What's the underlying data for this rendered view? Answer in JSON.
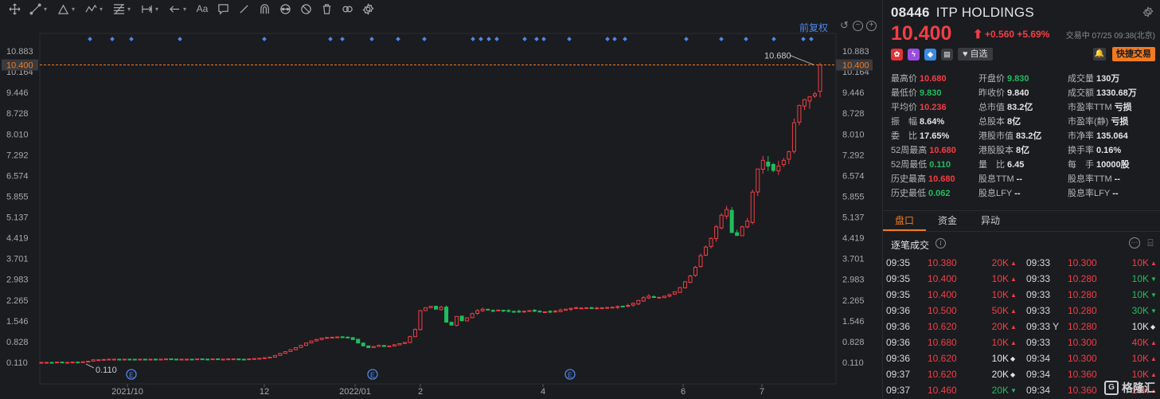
{
  "toolbar": {
    "icons": [
      "crosshair-icon",
      "trendline-icon",
      "triangle-icon",
      "wave-icon",
      "fib-icon",
      "range-icon",
      "arrow-icon",
      "text-icon",
      "note-icon",
      "pen-icon",
      "magnet-icon",
      "eye-icon",
      "hide-icon",
      "trash-icon",
      "link-icon",
      "gear-icon"
    ],
    "text_tool": "Aa"
  },
  "chart": {
    "adjust_label": "前复权",
    "current_price_line": "10.400",
    "high_marker": "10.680",
    "low_marker": "0.110",
    "event_marker": "E",
    "colors": {
      "up": "#f23e44",
      "down": "#1fbd5d",
      "dots": "#4e86e6",
      "price_line": "#f27a20"
    }
  },
  "chart_data": {
    "type": "candlestick",
    "y_ticks": [
      "10.883",
      "10.164",
      "9.446",
      "8.728",
      "8.010",
      "7.292",
      "6.574",
      "5.855",
      "5.137",
      "4.419",
      "3.701",
      "2.983",
      "2.265",
      "1.546",
      "0.828",
      "0.110"
    ],
    "ylim": [
      0.11,
      10.883
    ],
    "x_ticks": [
      "2021/10",
      "12",
      "2022/01",
      "2",
      "4",
      "6",
      "7"
    ],
    "events_at": [
      "2021/10",
      "2022/01",
      "4"
    ],
    "close_path": [
      0.11,
      0.11,
      0.11,
      0.12,
      0.11,
      0.11,
      0.12,
      0.11,
      0.13,
      0.15,
      0.2,
      0.2,
      0.21,
      0.22,
      0.22,
      0.21,
      0.22,
      0.22,
      0.21,
      0.22,
      0.22,
      0.22,
      0.21,
      0.22,
      0.23,
      0.22,
      0.21,
      0.22,
      0.22,
      0.22,
      0.23,
      0.22,
      0.22,
      0.23,
      0.22,
      0.22,
      0.23,
      0.23,
      0.22,
      0.22,
      0.23,
      0.24,
      0.25,
      0.27,
      0.29,
      0.35,
      0.42,
      0.48,
      0.55,
      0.62,
      0.7,
      0.78,
      0.85,
      0.9,
      0.95,
      0.97,
      0.98,
      0.99,
      0.98,
      0.96,
      0.9,
      0.78,
      0.68,
      0.62,
      0.66,
      0.7,
      0.66,
      0.68,
      0.72,
      0.76,
      0.8,
      1.0,
      1.25,
      1.9,
      2.0,
      2.05,
      1.95,
      2.02,
      1.5,
      1.4,
      1.7,
      1.55,
      1.65,
      1.8,
      1.9,
      1.95,
      1.92,
      1.88,
      1.92,
      1.9,
      1.88,
      1.87,
      1.86,
      1.88,
      1.9,
      1.88,
      1.86,
      1.86,
      1.87,
      1.88,
      1.92,
      1.95,
      1.98,
      2.0,
      1.99,
      2.0,
      1.98,
      1.99,
      2.0,
      2.01,
      2.02,
      2.04,
      2.05,
      2.08,
      2.15,
      2.25,
      2.35,
      2.4,
      2.38,
      2.36,
      2.4,
      2.45,
      2.55,
      2.7,
      2.9,
      3.1,
      3.4,
      3.8,
      4.1,
      4.4,
      4.8,
      5.2,
      5.4,
      4.6,
      4.5,
      4.8,
      5.0,
      6.0,
      6.8,
      7.1,
      6.9,
      6.75,
      6.9,
      7.1,
      7.4,
      8.4,
      9.0,
      9.2,
      9.3,
      9.4,
      10.4
    ],
    "dot_markers": 30
  },
  "quote": {
    "code": "08446",
    "name": "ITP HOLDINGS",
    "price": "10.400",
    "arrow": "⬆",
    "change": "+0.560 +5.69%",
    "status": "交易中 07/25 09:38(北京)",
    "watch_label": "自选",
    "quick_trade": "快捷交易",
    "stats": [
      {
        "label": "最高价",
        "value": "10.680",
        "color": "red"
      },
      {
        "label": "开盘价",
        "value": "9.830",
        "color": "green"
      },
      {
        "label": "成交量",
        "value": "130万",
        "color": ""
      },
      {
        "label": "最低价",
        "value": "9.830",
        "color": "green"
      },
      {
        "label": "昨收价",
        "value": "9.840",
        "color": ""
      },
      {
        "label": "成交额",
        "value": "1330.68万",
        "color": ""
      },
      {
        "label": "平均价",
        "value": "10.236",
        "color": "red"
      },
      {
        "label": "总市值",
        "value": "83.2亿",
        "color": ""
      },
      {
        "label": "市盈率TTM",
        "value": "亏损",
        "color": ""
      },
      {
        "label": "振　幅",
        "value": "8.64%",
        "color": ""
      },
      {
        "label": "总股本",
        "value": "8亿",
        "color": ""
      },
      {
        "label": "市盈率(静)",
        "value": "亏损",
        "color": ""
      },
      {
        "label": "委　比",
        "value": "17.65%",
        "color": ""
      },
      {
        "label": "港股市值",
        "value": "83.2亿",
        "color": ""
      },
      {
        "label": "市净率",
        "value": "135.064",
        "color": ""
      },
      {
        "label": "52周最高",
        "value": "10.680",
        "color": "red"
      },
      {
        "label": "港股股本",
        "value": "8亿",
        "color": ""
      },
      {
        "label": "换手率",
        "value": "0.16%",
        "color": ""
      },
      {
        "label": "52周最低",
        "value": "0.110",
        "color": "green"
      },
      {
        "label": "量　比",
        "value": "6.45",
        "color": ""
      },
      {
        "label": "每　手",
        "value": "10000股",
        "color": ""
      },
      {
        "label": "历史最高",
        "value": "10.680",
        "color": "red"
      },
      {
        "label": "股息TTM",
        "value": "--",
        "color": ""
      },
      {
        "label": "股息率TTM",
        "value": "--",
        "color": ""
      },
      {
        "label": "历史最低",
        "value": "0.062",
        "color": "green"
      },
      {
        "label": "股息LFY",
        "value": "--",
        "color": ""
      },
      {
        "label": "股息率LFY",
        "value": "--",
        "color": ""
      }
    ],
    "tabs": [
      "盘口",
      "资金",
      "异动"
    ],
    "ticks_title": "逐笔成交",
    "ticks": [
      {
        "t1": "09:35",
        "p1": "10.380",
        "v1": "20K",
        "c1": "red",
        "f1": "▲",
        "t2": "09:33",
        "p2": "10.300",
        "v2": "10K",
        "c2": "red",
        "f2": "▲"
      },
      {
        "t1": "09:35",
        "p1": "10.400",
        "v1": "10K",
        "c1": "red",
        "f1": "▲",
        "t2": "09:33",
        "p2": "10.280",
        "v2": "10K",
        "c2": "green",
        "f2": "▼"
      },
      {
        "t1": "09:35",
        "p1": "10.400",
        "v1": "10K",
        "c1": "red",
        "f1": "▲",
        "t2": "09:33",
        "p2": "10.280",
        "v2": "10K",
        "c2": "green",
        "f2": "▼"
      },
      {
        "t1": "09:36",
        "p1": "10.500",
        "v1": "50K",
        "c1": "red",
        "f1": "▲",
        "t2": "09:33",
        "p2": "10.280",
        "v2": "30K",
        "c2": "green",
        "f2": "▼"
      },
      {
        "t1": "09:36",
        "p1": "10.620",
        "v1": "20K",
        "c1": "red",
        "f1": "▲",
        "t2": "09:33 Y",
        "p2": "10.280",
        "v2": "10K",
        "c2": "white",
        "f2": "◆"
      },
      {
        "t1": "09:36",
        "p1": "10.680",
        "v1": "10K",
        "c1": "red",
        "f1": "▲",
        "t2": "09:33",
        "p2": "10.300",
        "v2": "40K",
        "c2": "red",
        "f2": "▲"
      },
      {
        "t1": "09:36",
        "p1": "10.620",
        "v1": "10K",
        "c1": "white",
        "f1": "◆",
        "t2": "09:34",
        "p2": "10.300",
        "v2": "10K",
        "c2": "red",
        "f2": "▲"
      },
      {
        "t1": "09:37",
        "p1": "10.620",
        "v1": "20K",
        "c1": "white",
        "f1": "◆",
        "t2": "09:34",
        "p2": "10.360",
        "v2": "10K",
        "c2": "red",
        "f2": "▲"
      },
      {
        "t1": "09:37",
        "p1": "10.460",
        "v1": "20K",
        "c1": "green",
        "f1": "▼",
        "t2": "09:34",
        "p2": "10.360",
        "v2": "10K",
        "c2": "red",
        "f2": "▲"
      }
    ],
    "watermark": "格隆汇"
  }
}
